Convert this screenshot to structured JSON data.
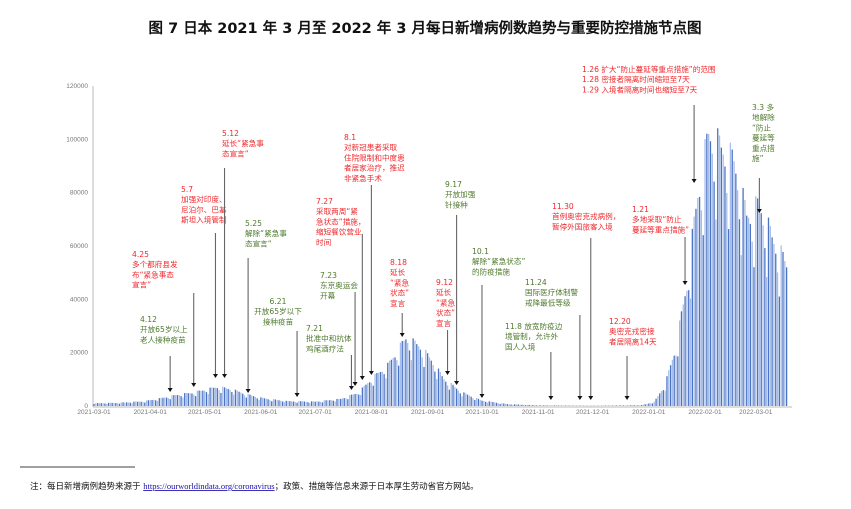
{
  "chart_data": {
    "type": "bar",
    "title": "图 7  日本 2021 年 3 月至 2022 年 3 月每日新增病例数趋势与重要防控措施节点图",
    "xlabel": "",
    "ylabel": "",
    "ylim": [
      0,
      120000
    ],
    "yticks": [
      "0",
      "20000",
      "40000",
      "60000",
      "80000",
      "100000",
      "120000"
    ],
    "xticks": [
      "2021-03-01",
      "2021-04-01",
      "2021-05-01",
      "2021-06-01",
      "2021-07-01",
      "2021-08-01",
      "2021-09-01",
      "2021-10-01",
      "2021-11-01",
      "2021-12-01",
      "2022-01-01",
      "2022-02-01",
      "2022-03-01"
    ],
    "date_range": [
      "2021-03-01",
      "2022-03-18"
    ],
    "series": [
      {
        "name": "每日新增病例数",
        "anchors": [
          [
            "2021-03-01",
            1000
          ],
          [
            "2021-03-15",
            1200
          ],
          [
            "2021-03-28",
            1700
          ],
          [
            "2021-04-05",
            2600
          ],
          [
            "2021-04-15",
            4000
          ],
          [
            "2021-04-25",
            5000
          ],
          [
            "2021-05-08",
            7000
          ],
          [
            "2021-05-15",
            6300
          ],
          [
            "2021-05-25",
            4200
          ],
          [
            "2021-06-01",
            3000
          ],
          [
            "2021-06-15",
            1800
          ],
          [
            "2021-07-01",
            1600
          ],
          [
            "2021-07-15",
            2600
          ],
          [
            "2021-07-25",
            5000
          ],
          [
            "2021-08-01",
            10000
          ],
          [
            "2021-08-10",
            15000
          ],
          [
            "2021-08-20",
            25000
          ],
          [
            "2021-08-28",
            22000
          ],
          [
            "2021-09-03",
            17000
          ],
          [
            "2021-09-10",
            10000
          ],
          [
            "2021-09-20",
            5000
          ],
          [
            "2021-10-01",
            2000
          ],
          [
            "2021-10-15",
            700
          ],
          [
            "2021-11-01",
            250
          ],
          [
            "2021-12-01",
            120
          ],
          [
            "2021-12-28",
            300
          ],
          [
            "2022-01-04",
            1500
          ],
          [
            "2022-01-10",
            8000
          ],
          [
            "2022-01-16",
            22000
          ],
          [
            "2022-01-22",
            45000
          ],
          [
            "2022-01-28",
            78000
          ],
          [
            "2022-02-03",
            100000
          ],
          [
            "2022-02-10",
            95000
          ],
          [
            "2022-02-17",
            90000
          ],
          [
            "2022-02-24",
            70000
          ],
          [
            "2022-03-03",
            74000
          ],
          [
            "2022-03-10",
            62000
          ],
          [
            "2022-03-18",
            52000
          ]
        ]
      }
    ],
    "annotations": [
      {
        "date": "2021-04-12",
        "color": "green",
        "lines": [
          "4.12",
          "开放65岁以上",
          "老人接种疫苗"
        ]
      },
      {
        "date": "2021-04-25",
        "color": "red",
        "lines": [
          "4.25",
          "多个都府县发",
          "布“紧急事态",
          "宣言”"
        ]
      },
      {
        "date": "2021-05-07",
        "color": "red",
        "lines": [
          "5.7",
          "加强对印度、",
          "尼泊尔、巴基",
          "斯坦入境管制"
        ]
      },
      {
        "date": "2021-05-12",
        "color": "red",
        "lines": [
          "5.12",
          "延长“紧急事",
          "态宣言”"
        ]
      },
      {
        "date": "2021-05-25",
        "color": "green",
        "lines": [
          "5.25",
          "解除“紧急事",
          "态宣言”"
        ]
      },
      {
        "date": "2021-06-21",
        "color": "green",
        "lines": [
          "6.21",
          "开放65岁以下",
          "接种疫苗"
        ]
      },
      {
        "date": "2021-07-21",
        "color": "green",
        "lines": [
          "7.21",
          "批准中和抗体",
          "鸡尾酒疗法"
        ]
      },
      {
        "date": "2021-07-23",
        "color": "green",
        "lines": [
          "7.23",
          "东京奥运会",
          "开幕"
        ]
      },
      {
        "date": "2021-07-27",
        "color": "red",
        "lines": [
          "7.27",
          "采取两周“紧",
          "急状态”措施，",
          "缩短餐饮营业",
          "时间"
        ]
      },
      {
        "date": "2021-08-01",
        "color": "red",
        "lines": [
          "8.1",
          "对新冠患者采取",
          "住院限制和中度患",
          "者居家治疗，推迟",
          "非紧急手术"
        ]
      },
      {
        "date": "2021-08-18",
        "color": "red",
        "lines": [
          "8.18",
          "延长",
          "“紧急",
          "状态”",
          "宣言"
        ]
      },
      {
        "date": "2021-09-12",
        "color": "red",
        "lines": [
          "9.12",
          "延长",
          "“紧急",
          "状态”",
          "宣言"
        ]
      },
      {
        "date": "2021-09-17",
        "color": "green",
        "lines": [
          "9.17",
          "开放加强",
          "针接种"
        ]
      },
      {
        "date": "2021-10-01",
        "color": "green",
        "lines": [
          "10.1",
          "解除“紧急状态”",
          "的防疫措施"
        ]
      },
      {
        "date": "2021-11-08",
        "color": "green",
        "lines": [
          "11.8  放宽防疫边",
          "境管制，允许外",
          "国人入境"
        ]
      },
      {
        "date": "2021-11-24",
        "color": "green",
        "lines": [
          "11.24",
          "国际医疗体制警",
          "戒降最低等级"
        ]
      },
      {
        "date": "2021-11-30",
        "color": "red",
        "lines": [
          "11.30",
          "首例奥密克戎病例，",
          "暂停外国旅客入境"
        ]
      },
      {
        "date": "2021-12-20",
        "color": "red",
        "lines": [
          "12.20",
          "奥密克戎密接",
          "者居隔离14天"
        ]
      },
      {
        "date": "2022-01-21",
        "color": "red",
        "lines": [
          "1.21",
          "多地采取“防止",
          "蔓延等重点措施”"
        ]
      },
      {
        "date": "2022-01-26",
        "color": "red",
        "lines": [
          "1.26 扩大“防止蔓延等重点措施”的范围",
          "1.28 密接者隔离时间缩短至7天",
          "1.29 入境者隔离时间也缩短至7天"
        ]
      },
      {
        "date": "2022-03-03",
        "color": "green",
        "lines": [
          "3.3  多",
          "地解除",
          "“防止",
          "蔓延等",
          "重点措",
          "施”"
        ]
      }
    ],
    "colors": {
      "bar_dark": "#4a74c6",
      "bar_light": "#a9bee6",
      "red": "#f0282d",
      "green": "#4e7a2c"
    }
  },
  "footnote": {
    "prefix": "注：每日新增病例趋势来源于 ",
    "link": "https://ourworldindata.org/coronavirus",
    "suffix": "；政策、措施等信息来源于日本厚生劳动省官方网站。"
  }
}
